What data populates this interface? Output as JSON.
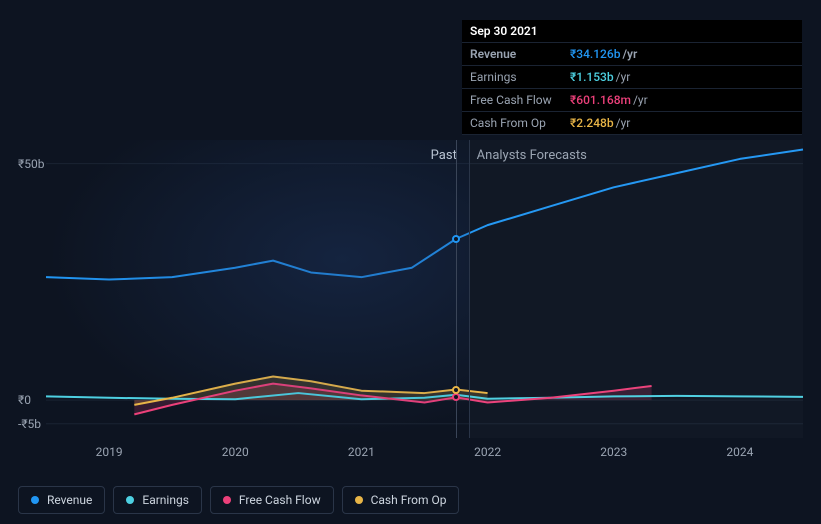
{
  "tooltip": {
    "date": "Sep 30 2021",
    "rows": [
      {
        "label": "Revenue",
        "value": "₹34.126b",
        "suffix": "/yr",
        "color": "#2196f3"
      },
      {
        "label": "Earnings",
        "value": "₹1.153b",
        "suffix": "/yr",
        "color": "#4dd0e1"
      },
      {
        "label": "Free Cash Flow",
        "value": "₹601.168m",
        "suffix": "/yr",
        "color": "#ec407a"
      },
      {
        "label": "Cash From Op",
        "value": "₹2.248b",
        "suffix": "/yr",
        "color": "#e8b547"
      }
    ]
  },
  "chart": {
    "type": "line",
    "background_color": "#0d1421",
    "grid_color": "#1a2332",
    "text_color": "#9aa4b2",
    "currency": "₹",
    "y_unit": "b",
    "line_width": 2,
    "x_range": [
      2018.5,
      2024.5
    ],
    "y_range": [
      -8,
      55
    ],
    "y_ticks": [
      {
        "value": 50,
        "label": "₹50b"
      },
      {
        "value": 0,
        "label": "₹0"
      },
      {
        "value": -5,
        "label": "-₹5b"
      }
    ],
    "x_ticks": [
      2019,
      2020,
      2021,
      2022,
      2023,
      2024
    ],
    "past_label": "Past",
    "forecast_label": "Analysts Forecasts",
    "cursor_x": 2021.75,
    "divider_x": 2021.85,
    "series": [
      {
        "name": "Revenue",
        "color": "#2196f3",
        "marker_at_cursor": true,
        "points": [
          [
            2018.5,
            26
          ],
          [
            2019,
            25.5
          ],
          [
            2019.5,
            26
          ],
          [
            2020,
            28
          ],
          [
            2020.3,
            29.5
          ],
          [
            2020.6,
            27
          ],
          [
            2021,
            26
          ],
          [
            2021.4,
            28
          ],
          [
            2021.75,
            34.1
          ],
          [
            2022,
            37
          ],
          [
            2022.5,
            41
          ],
          [
            2023,
            45
          ],
          [
            2023.5,
            48
          ],
          [
            2024,
            51
          ],
          [
            2024.5,
            53
          ]
        ]
      },
      {
        "name": "Earnings",
        "color": "#4dd0e1",
        "marker_at_cursor": false,
        "points": [
          [
            2018.5,
            0.8
          ],
          [
            2019,
            0.5
          ],
          [
            2019.5,
            0.3
          ],
          [
            2020,
            0.2
          ],
          [
            2020.5,
            1.5
          ],
          [
            2021,
            0.2
          ],
          [
            2021.5,
            0.5
          ],
          [
            2021.75,
            1.15
          ],
          [
            2022,
            0.3
          ],
          [
            2022.5,
            0.5
          ],
          [
            2023,
            0.8
          ],
          [
            2023.5,
            0.9
          ],
          [
            2024,
            0.8
          ],
          [
            2024.5,
            0.7
          ]
        ]
      },
      {
        "name": "Free Cash Flow",
        "color": "#ec407a",
        "marker_at_cursor": true,
        "area": true,
        "points": [
          [
            2019.2,
            -3
          ],
          [
            2019.5,
            -1
          ],
          [
            2020,
            2
          ],
          [
            2020.3,
            3.5
          ],
          [
            2020.6,
            2.5
          ],
          [
            2021,
            1
          ],
          [
            2021.5,
            -0.5
          ],
          [
            2021.75,
            0.6
          ],
          [
            2022,
            -0.5
          ],
          [
            2022.5,
            0.5
          ],
          [
            2023,
            2
          ],
          [
            2023.3,
            3
          ]
        ]
      },
      {
        "name": "Cash From Op",
        "color": "#e8b547",
        "marker_at_cursor": true,
        "area": true,
        "points": [
          [
            2019.2,
            -1
          ],
          [
            2019.5,
            0.5
          ],
          [
            2020,
            3.5
          ],
          [
            2020.3,
            5
          ],
          [
            2020.6,
            4
          ],
          [
            2021,
            2
          ],
          [
            2021.5,
            1.5
          ],
          [
            2021.75,
            2.25
          ],
          [
            2022,
            1.5
          ]
        ]
      }
    ],
    "legend": [
      {
        "label": "Revenue",
        "color": "#2196f3"
      },
      {
        "label": "Earnings",
        "color": "#4dd0e1"
      },
      {
        "label": "Free Cash Flow",
        "color": "#ec407a"
      },
      {
        "label": "Cash From Op",
        "color": "#e8b547"
      }
    ]
  }
}
